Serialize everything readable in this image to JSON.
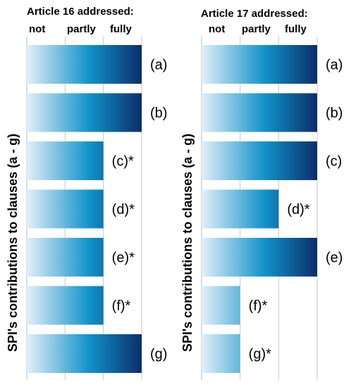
{
  "chart_data": [
    {
      "type": "bar",
      "orientation": "horizontal",
      "title": "Article 16 addressed:",
      "levels": [
        "not",
        "partly",
        "fully"
      ],
      "ylabel": "SPI's contributions to clauses (a - g)",
      "categories": [
        "(a)",
        "(b)",
        "(c)*",
        "(d)*",
        "(e)*",
        "(f)*",
        "(g)"
      ],
      "values": [
        3,
        3,
        2,
        2,
        2,
        2,
        3
      ],
      "xlim": [
        0,
        3
      ],
      "grid": true,
      "colors": {
        "start": "#e3eff9",
        "mid": "#0e92c8",
        "end": "#0b2e6b"
      }
    },
    {
      "type": "bar",
      "orientation": "horizontal",
      "title": "Article 17 addressed:",
      "levels": [
        "not",
        "partly",
        "fully"
      ],
      "ylabel": "SPI's contributions to clauses (a - g)",
      "categories": [
        "(a)",
        "(b)",
        "(c)",
        "(d)*",
        "(e)",
        "(f)*",
        "(g)*"
      ],
      "values": [
        3,
        3,
        3,
        2,
        3,
        1,
        1
      ],
      "xlim": [
        0,
        3
      ],
      "grid": true,
      "colors": {
        "start": "#e3eff9",
        "mid": "#0e92c8",
        "end": "#0b2e6b"
      }
    }
  ]
}
